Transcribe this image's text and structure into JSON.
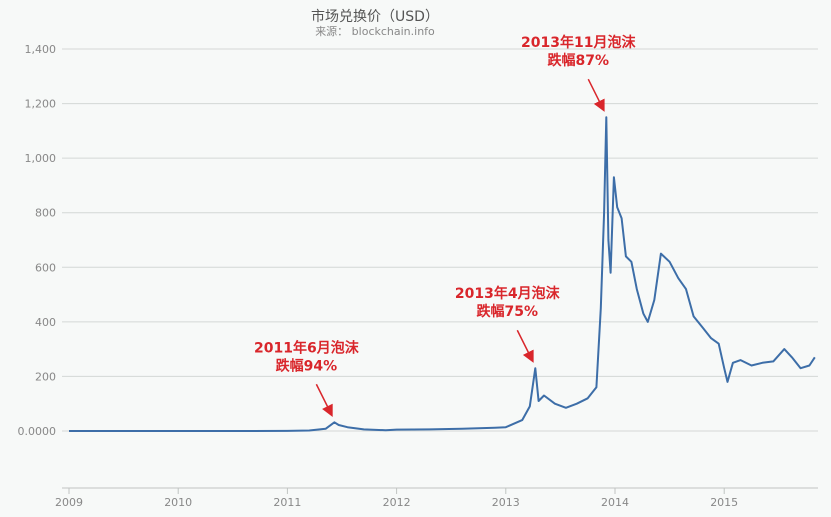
{
  "chart_data": {
    "type": "line",
    "title": "市场兑换价（USD）",
    "subtitle": "来源： blockchain.info",
    "xlabel": "",
    "ylabel": "",
    "xlim": [
      2009,
      2015.85
    ],
    "ylim": [
      -200,
      1400
    ],
    "y_ticks": [
      {
        "value": 0,
        "label": "0.0000"
      },
      {
        "value": 200,
        "label": "200"
      },
      {
        "value": 400,
        "label": "400"
      },
      {
        "value": 600,
        "label": "600"
      },
      {
        "value": 800,
        "label": "800"
      },
      {
        "value": 1000,
        "label": "1,000"
      },
      {
        "value": 1200,
        "label": "1,200"
      },
      {
        "value": 1400,
        "label": "1,400"
      }
    ],
    "x_ticks": [
      "2009",
      "2010",
      "2011",
      "2012",
      "2013",
      "2014",
      "2015"
    ],
    "grid": true,
    "line_color": "#3d6ea8",
    "annotation_color": "#d9262b",
    "series": [
      {
        "x": [
          2009,
          2010,
          2010.5,
          2011,
          2011.2,
          2011.35,
          2011.43,
          2011.47,
          2011.55,
          2011.7,
          2011.9,
          2012,
          2012.3,
          2012.6,
          2012.9,
          2013,
          2013.15,
          2013.22,
          2013.27,
          2013.3,
          2013.35,
          2013.45,
          2013.55,
          2013.65,
          2013.75,
          2013.83,
          2013.87,
          2013.9,
          2013.92,
          2013.94,
          2013.96,
          2013.99,
          2014.02,
          2014.06,
          2014.1,
          2014.15,
          2014.2,
          2014.26,
          2014.3,
          2014.36,
          2014.42,
          2014.5,
          2014.58,
          2014.65,
          2014.72,
          2014.8,
          2014.88,
          2014.95,
          2015.0,
          2015.03,
          2015.08,
          2015.15,
          2015.25,
          2015.35,
          2015.45,
          2015.55,
          2015.62,
          2015.7,
          2015.78,
          2015.83
        ],
        "y": [
          0,
          0,
          0.1,
          0.5,
          2,
          8,
          32,
          22,
          14,
          6,
          3,
          5,
          6,
          8,
          12,
          14,
          40,
          90,
          230,
          110,
          130,
          100,
          85,
          100,
          120,
          160,
          450,
          800,
          1150,
          700,
          580,
          930,
          820,
          780,
          640,
          620,
          520,
          430,
          400,
          480,
          650,
          620,
          560,
          520,
          420,
          380,
          340,
          320,
          230,
          180,
          250,
          260,
          240,
          250,
          255,
          300,
          270,
          230,
          240,
          270
        ]
      }
    ],
    "annotations": [
      {
        "lines": [
          "2011年6月泡沫",
          "跌幅94%"
        ],
        "x": 2011.43,
        "y": 32
      },
      {
        "lines": [
          "2013年4月泡沫",
          "跌幅75%"
        ],
        "x": 2013.27,
        "y": 230
      },
      {
        "lines": [
          "2013年11月泡沫",
          "跌幅87%"
        ],
        "x": 2013.92,
        "y": 1150
      }
    ]
  }
}
